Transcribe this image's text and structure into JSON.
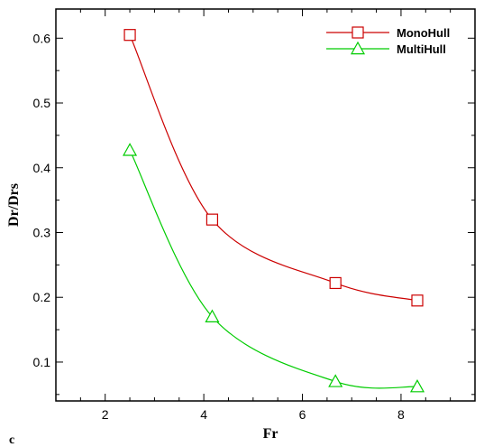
{
  "chart_data": {
    "type": "line",
    "panel_label": "c",
    "xlabel": "Fr",
    "ylabel": "Dr/Drs",
    "xlim": [
      1,
      9.5
    ],
    "ylim": [
      0.04,
      0.645
    ],
    "xticks": [
      2,
      4,
      6,
      8
    ],
    "yticks": [
      0.1,
      0.2,
      0.3,
      0.4,
      0.5,
      0.6
    ],
    "grid": false,
    "legend_position": "top-right",
    "series": [
      {
        "name": "MonoHull",
        "color": "#cc0000",
        "marker": "square",
        "x": [
          2.5,
          4.17,
          6.67,
          8.33
        ],
        "y": [
          0.605,
          0.32,
          0.222,
          0.195
        ]
      },
      {
        "name": "MultiHull",
        "color": "#00cc00",
        "marker": "triangle",
        "x": [
          2.5,
          4.17,
          6.67,
          8.33
        ],
        "y": [
          0.427,
          0.17,
          0.07,
          0.062
        ]
      }
    ]
  }
}
